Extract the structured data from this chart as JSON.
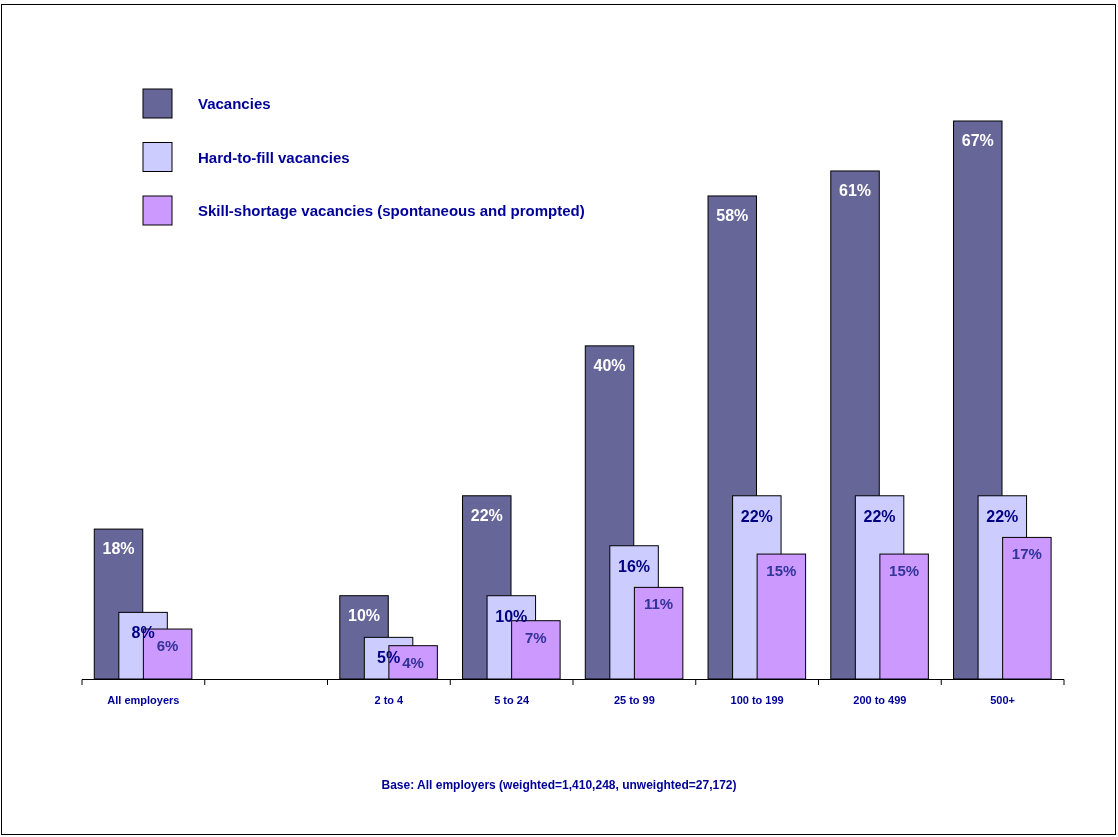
{
  "chart_data": {
    "type": "bar",
    "categories": [
      "All employers",
      null,
      "2 to 4",
      "5 to 24",
      "25 to 99",
      "100 to 199",
      "200 to 499",
      "500+"
    ],
    "series": [
      {
        "name": "Vacancies",
        "color": "#666699",
        "values": [
          18,
          null,
          10,
          22,
          40,
          58,
          61,
          67
        ],
        "value_labels": [
          "18%",
          null,
          "10%",
          "22%",
          "40%",
          "58%",
          "61%",
          "67%"
        ]
      },
      {
        "name": "Hard-to-fill vacancies",
        "color": "#ccccff",
        "values": [
          8,
          null,
          5,
          10,
          16,
          22,
          22,
          22
        ],
        "value_labels": [
          "8%",
          null,
          "5%",
          "10%",
          "16%",
          "22%",
          "22%",
          "22%"
        ]
      },
      {
        "name": "Skill-shortage vacancies (spontaneous and prompted)",
        "color": "#cc99ff",
        "values": [
          6,
          null,
          4,
          7,
          11,
          15,
          15,
          17
        ],
        "value_labels": [
          "6%",
          null,
          "4%",
          "7%",
          "11%",
          "15%",
          "15%",
          "17%"
        ]
      }
    ],
    "legend": "top left",
    "tick_labels": "x",
    "annotations": [
      "Base: All employers (weighted=1,410,248, unweighted=27,172)"
    ]
  }
}
